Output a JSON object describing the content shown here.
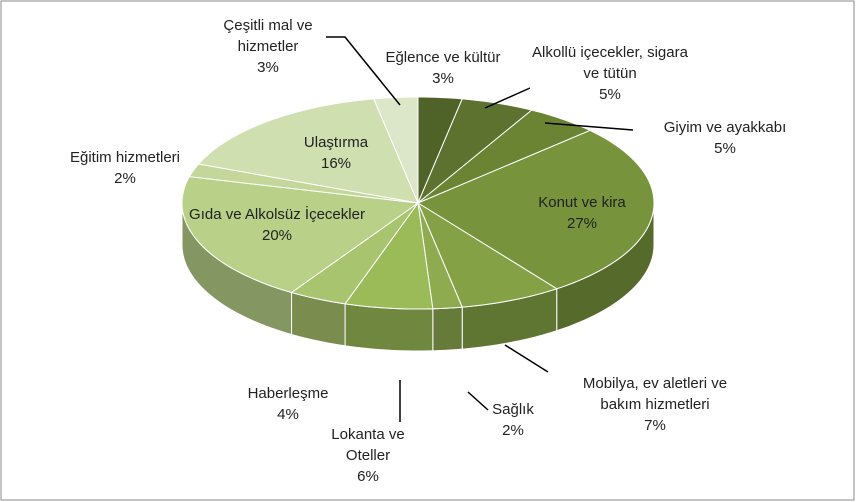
{
  "chart_data": {
    "type": "pie3d",
    "categories": [
      "Eğlence ve kültür",
      "Alkollü içecekler, sigara ve tütün",
      "Giyim ve ayakkabı",
      "Konut ve kira",
      "Mobilya, ev aletleri ve bakım hizmetleri",
      "Sağlık",
      "Lokanta ve Oteller",
      "Haberleşme",
      "Gıda ve Alkolsüz İçecekler",
      "Eğitim hizmetleri",
      "Ulaştırma",
      "Çeşitli mal ve hizmetler"
    ],
    "values": [
      3,
      5,
      5,
      27,
      7,
      2,
      6,
      4,
      20,
      2,
      16,
      3
    ],
    "value_labels": [
      "3%",
      "5%",
      "5%",
      "27%",
      "7%",
      "2%",
      "6%",
      "4%",
      "20%",
      "2%",
      "16%",
      "3%"
    ],
    "colors": [
      "#4f6228",
      "#5c722e",
      "#6a8434",
      "#77933c",
      "#84a245",
      "#8eab4f",
      "#9bbb59",
      "#a9c46e",
      "#b8d088",
      "#c3d79a",
      "#cfdfb0",
      "#dce6c8"
    ]
  }
}
